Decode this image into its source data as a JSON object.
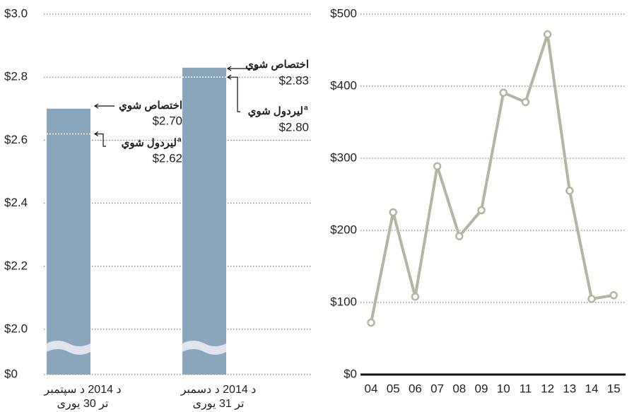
{
  "chart_data": [
    {
      "type": "bar",
      "categories": [
        [
          "د 2014 د سپتمبر",
          "تر 30 یوری"
        ],
        [
          "د 2014 د دسمبر",
          "تر 31 یوری"
        ]
      ],
      "series": [
        {
          "name": "اختصاص شوي",
          "color": "#8ba5bb",
          "values": [
            2.7,
            2.83
          ],
          "value_labels": [
            "$2.70",
            "$2.83"
          ]
        },
        {
          "name": "ليردول شوي",
          "footnote": "a",
          "color": "#ffffff",
          "values": [
            2.62,
            2.8
          ],
          "value_labels": [
            "$2.62",
            "$2.80"
          ]
        }
      ],
      "ylim": [
        0,
        3.0
      ],
      "axis_break": [
        0,
        2.0
      ],
      "yticks": [
        {
          "value": 0,
          "label": "$0"
        },
        {
          "value": 2.0,
          "label": "$2.0"
        },
        {
          "value": 2.2,
          "label": "$2.2"
        },
        {
          "value": 2.4,
          "label": "$2.4"
        },
        {
          "value": 2.6,
          "label": "$2.6"
        },
        {
          "value": 2.8,
          "label": "$2.8"
        },
        {
          "value": 3.0,
          "label": "$3.0"
        }
      ],
      "grid": true
    },
    {
      "type": "line",
      "categories": [
        "04",
        "05",
        "06",
        "07",
        "08",
        "09",
        "10",
        "11",
        "12",
        "13",
        "14",
        "15"
      ],
      "values": [
        72,
        225,
        108,
        289,
        192,
        228,
        391,
        378,
        472,
        255,
        105,
        110
      ],
      "color": "#b3b6a1",
      "ylim": [
        0,
        500
      ],
      "yticks": [
        {
          "value": 0,
          "label": "$0"
        },
        {
          "value": 100,
          "label": "$100"
        },
        {
          "value": 200,
          "label": "$200"
        },
        {
          "value": 300,
          "label": "$300"
        },
        {
          "value": 400,
          "label": "$400"
        },
        {
          "value": 500,
          "label": "$500"
        }
      ],
      "grid": true
    }
  ]
}
